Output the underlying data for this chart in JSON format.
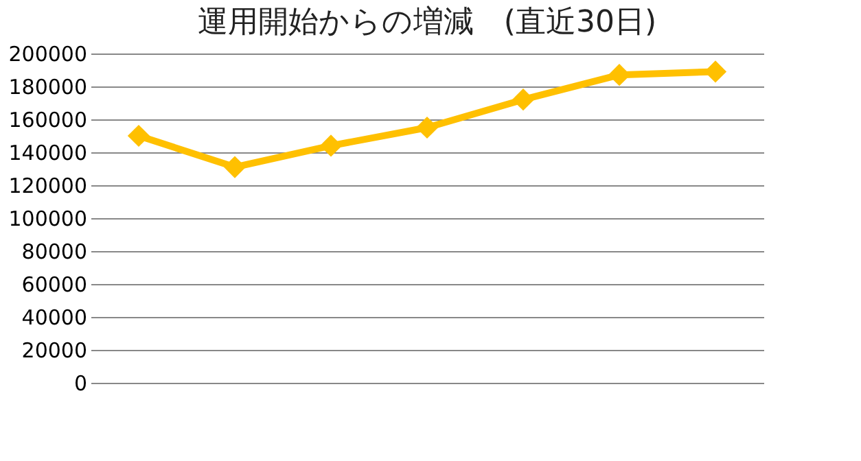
{
  "chart_data": {
    "type": "line",
    "title": "運用開始からの増減　(直近30日)",
    "categories": [
      null,
      null,
      null,
      null,
      null,
      null,
      null
    ],
    "series": [
      {
        "color": "#ffc000",
        "values": [
          150000,
          131000,
          144000,
          155000,
          172000,
          187000,
          189000
        ]
      }
    ],
    "ylim": [
      0,
      200000
    ],
    "yticks": [
      0,
      20000,
      40000,
      60000,
      80000,
      100000,
      120000,
      140000,
      160000,
      180000,
      200000
    ],
    "grid": "y",
    "marker": "diamond",
    "line_style": "solid",
    "legend": false,
    "tick_labels": "y"
  }
}
